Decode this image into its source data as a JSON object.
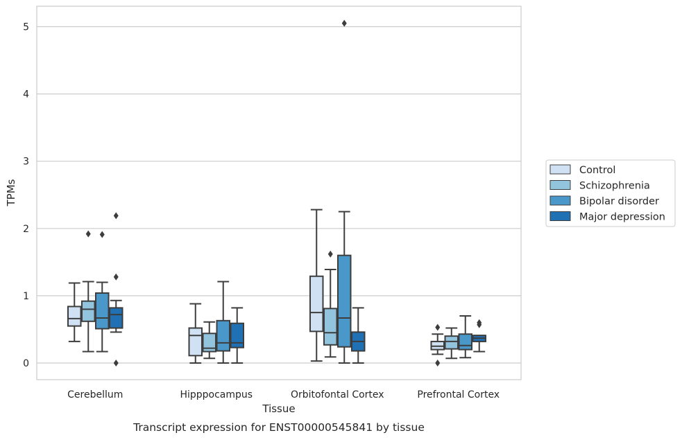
{
  "chart_data": {
    "type": "box",
    "xlabel": "Tissue",
    "ylabel": "TPMs",
    "caption": "Transcript expression for ENST00000545841 by tissue",
    "ylim": [
      -0.25,
      5.3
    ],
    "yticks": [
      "0",
      "1",
      "2",
      "3",
      "4",
      "5"
    ],
    "grid": true,
    "legend_position": "right",
    "categories": [
      "Cerebellum",
      "Hipppocampus",
      "Orbitofontal Cortex",
      "Prefrontal Cortex"
    ],
    "series": [
      {
        "name": "Control",
        "color": "#cfe1f2",
        "boxes": [
          {
            "whisker_low": 0.32,
            "q1": 0.55,
            "median": 0.66,
            "q3": 0.84,
            "whisker_high": 1.19,
            "outliers": []
          },
          {
            "whisker_low": 0.0,
            "q1": 0.11,
            "median": 0.41,
            "q3": 0.52,
            "whisker_high": 0.88,
            "outliers": []
          },
          {
            "whisker_low": 0.03,
            "q1": 0.47,
            "median": 0.75,
            "q3": 1.29,
            "whisker_high": 2.28,
            "outliers": []
          },
          {
            "whisker_low": 0.13,
            "q1": 0.2,
            "median": 0.25,
            "q3": 0.32,
            "whisker_high": 0.43,
            "outliers": [
              0.0,
              0.53
            ]
          }
        ]
      },
      {
        "name": "Schizophrenia",
        "color": "#93c4de",
        "boxes": [
          {
            "whisker_low": 0.17,
            "q1": 0.62,
            "median": 0.8,
            "q3": 0.92,
            "whisker_high": 1.21,
            "outliers": [
              1.92
            ]
          },
          {
            "whisker_low": 0.07,
            "q1": 0.17,
            "median": 0.22,
            "q3": 0.44,
            "whisker_high": 0.61,
            "outliers": []
          },
          {
            "whisker_low": 0.09,
            "q1": 0.27,
            "median": 0.45,
            "q3": 0.81,
            "whisker_high": 1.39,
            "outliers": [
              1.62
            ]
          },
          {
            "whisker_low": 0.07,
            "q1": 0.21,
            "median": 0.32,
            "q3": 0.4,
            "whisker_high": 0.52,
            "outliers": []
          }
        ]
      },
      {
        "name": "Bipolar disorder",
        "color": "#4a98c9",
        "boxes": [
          {
            "whisker_low": 0.17,
            "q1": 0.51,
            "median": 0.67,
            "q3": 1.04,
            "whisker_high": 1.2,
            "outliers": [
              1.91
            ]
          },
          {
            "whisker_low": 0.0,
            "q1": 0.18,
            "median": 0.3,
            "q3": 0.63,
            "whisker_high": 1.21,
            "outliers": []
          },
          {
            "whisker_low": 0.0,
            "q1": 0.24,
            "median": 0.67,
            "q3": 1.6,
            "whisker_high": 2.25,
            "outliers": [
              5.05
            ]
          },
          {
            "whisker_low": 0.08,
            "q1": 0.2,
            "median": 0.26,
            "q3": 0.43,
            "whisker_high": 0.7,
            "outliers": []
          }
        ]
      },
      {
        "name": "Major depression",
        "color": "#2070b4",
        "boxes": [
          {
            "whisker_low": 0.46,
            "q1": 0.52,
            "median": 0.72,
            "q3": 0.82,
            "whisker_high": 0.93,
            "outliers": [
              2.19,
              1.28,
              0.0
            ]
          },
          {
            "whisker_low": 0.0,
            "q1": 0.23,
            "median": 0.3,
            "q3": 0.59,
            "whisker_high": 0.82,
            "outliers": []
          },
          {
            "whisker_low": 0.0,
            "q1": 0.18,
            "median": 0.32,
            "q3": 0.46,
            "whisker_high": 0.82,
            "outliers": []
          },
          {
            "whisker_low": 0.17,
            "q1": 0.32,
            "median": 0.37,
            "q3": 0.41,
            "whisker_high": 0.41,
            "outliers": [
              0.57,
              0.6
            ]
          }
        ]
      }
    ]
  }
}
